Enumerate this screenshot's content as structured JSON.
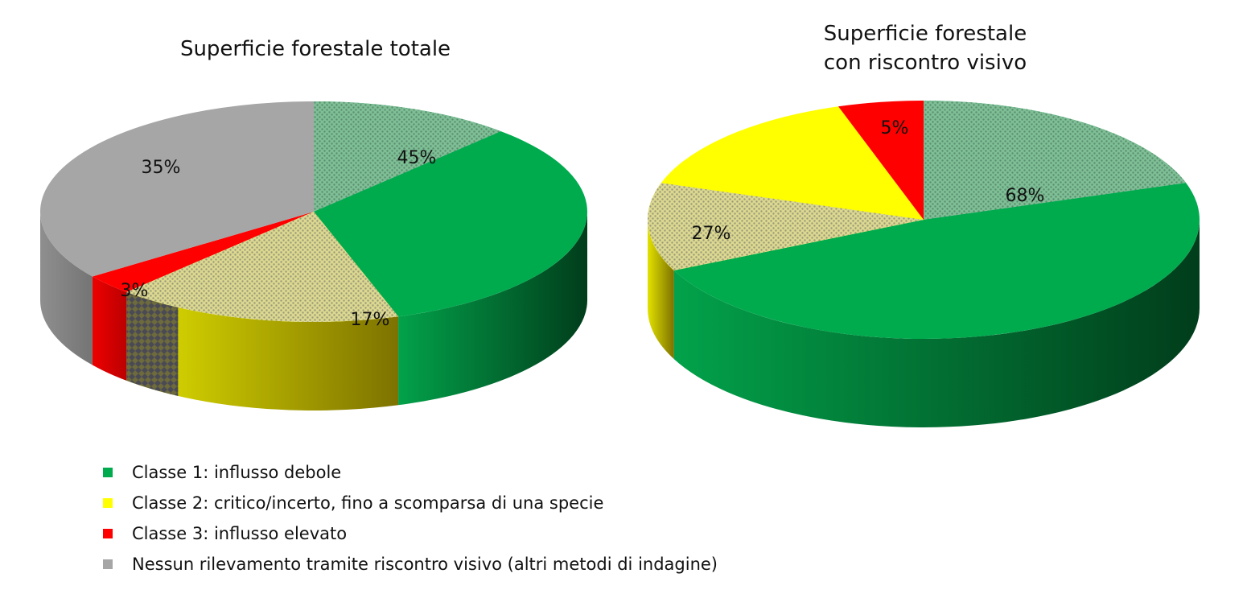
{
  "chart_data": [
    {
      "type": "pie",
      "title": "Superficie forestale totale",
      "slices": [
        {
          "key": "class1",
          "value": 45,
          "label": "45%"
        },
        {
          "key": "class2",
          "value": 17,
          "label": "17%"
        },
        {
          "key": "class3",
          "value": 3,
          "label": "3%"
        },
        {
          "key": "none",
          "value": 35,
          "label": "35%"
        }
      ]
    },
    {
      "type": "pie",
      "title": "Superficie forestale\ncon riscontro visivo",
      "slices": [
        {
          "key": "class1",
          "value": 68,
          "label": "68%"
        },
        {
          "key": "class2",
          "value": 27,
          "label": "27%"
        },
        {
          "key": "class3",
          "value": 5,
          "label": "5%"
        }
      ]
    }
  ],
  "legend": [
    {
      "key": "class1",
      "label": "Classe 1: influsso debole",
      "color": "#00ab4e"
    },
    {
      "key": "class2",
      "label": "Classe 2: critico/incerto, fino a scomparsa di una specie",
      "color": "#ffff00"
    },
    {
      "key": "class3",
      "label": "Classe 3: influsso elevato",
      "color": "#ff0000"
    },
    {
      "key": "none",
      "label": "Nessun rilevamento tramite riscontro visivo (altri metodi di indagine)",
      "color": "#a6a6a6"
    }
  ],
  "colors": {
    "class1": "#00ab4e",
    "class2": "#ffff00",
    "class3": "#ff0000",
    "none": "#a6a6a6"
  }
}
